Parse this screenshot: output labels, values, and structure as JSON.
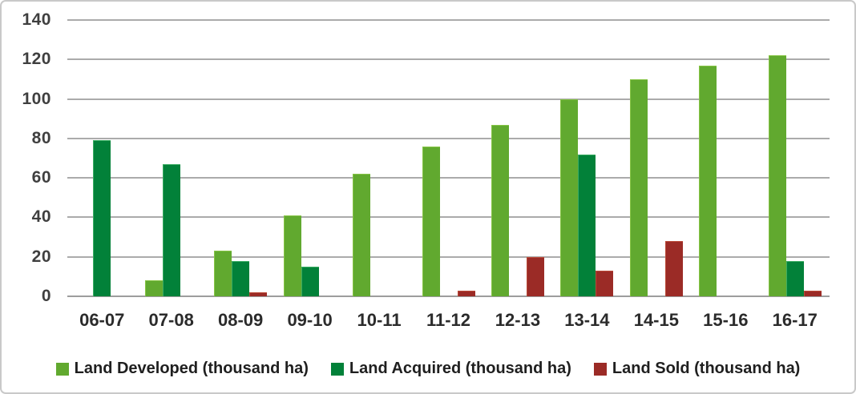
{
  "chart_data": {
    "type": "bar",
    "title": "",
    "xlabel": "",
    "ylabel": "",
    "categories": [
      "06-07",
      "07-08",
      "08-09",
      "09-10",
      "10-11",
      "11-12",
      "12-13",
      "13-14",
      "14-15",
      "15-16",
      "16-17"
    ],
    "series": [
      {
        "name": "Land Developed (thousand ha)",
        "color": "#61A92F",
        "edge": "#86C445",
        "values": [
          0,
          8,
          23,
          41,
          62,
          76,
          87,
          100,
          110,
          117,
          122
        ]
      },
      {
        "name": "Land Acquired (thousand ha)",
        "color": "#028139",
        "edge": "#3BAD63",
        "values": [
          79,
          67,
          18,
          15,
          0,
          0,
          0,
          72,
          0,
          0,
          18
        ]
      },
      {
        "name": "Land Sold (thousand ha)",
        "color": "#9B2B26",
        "edge": "#BA4B39",
        "values": [
          0,
          0,
          2,
          0,
          0,
          3,
          20,
          13,
          28,
          0,
          3
        ]
      }
    ],
    "ylim": [
      0,
      140
    ],
    "ytick_step": 20,
    "ytick_labels": [
      "0",
      "20",
      "40",
      "60",
      "80",
      "100",
      "120",
      "140"
    ],
    "grid": true,
    "legend_position": "bottom"
  },
  "style": {
    "gridline_color": "#ababab",
    "baseline_color": "#9d9d9d",
    "ytick_color": "#3f3f3f",
    "xtick_color": "#2b2b2b",
    "frame_border_color": "#c9c9c9",
    "background": "#ffffff"
  }
}
